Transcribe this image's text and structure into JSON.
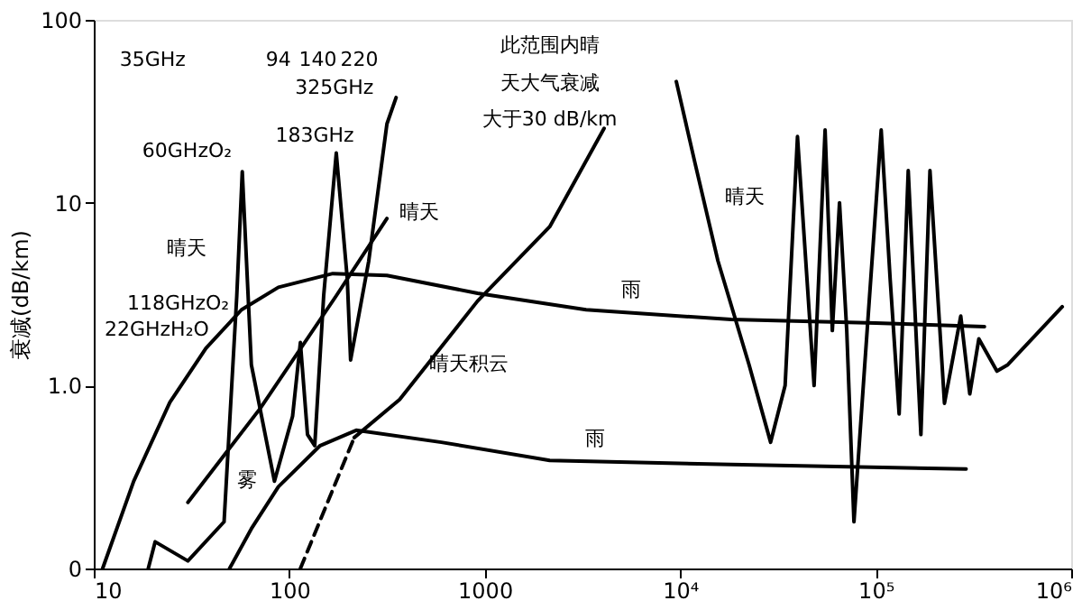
{
  "chart_data": {
    "type": "line",
    "ylabel": "衰减(dB/km)",
    "log": "xy",
    "grid": false,
    "legend": false,
    "marker": "none",
    "xlim": [
      10,
      1000000
    ],
    "ylim": [
      0.1,
      100
    ],
    "xticks": [
      10,
      100,
      1000,
      {
        "value": 10000,
        "label": "10⁴"
      },
      {
        "value": 100000,
        "label": "10⁵"
      },
      {
        "value": 1000000,
        "label": "10⁶"
      }
    ],
    "yticks": [
      {
        "value": 0.1,
        "label": "0"
      },
      {
        "value": 1,
        "label": "1.0"
      },
      10,
      100
    ],
    "series": [
      {
        "color": "#000000",
        "line_style": "solid",
        "x": [
          19,
          20.6,
          30.3,
          46.4,
          53.9,
          57.5,
          64,
          84,
          104,
          114,
          124,
          135,
          150,
          174,
          198,
          206,
          255,
          284,
          316,
          352
        ],
        "values": [
          0.1,
          0.14,
          0.11,
          0.18,
          3.1,
          14.8,
          1.3,
          0.3,
          0.68,
          1.72,
          0.54,
          0.47,
          3.1,
          18.7,
          3.85,
          1.38,
          4.8,
          11.4,
          27,
          37.6
        ]
      },
      {
        "color": "#000000",
        "line_style": "solid",
        "x": [
          9550,
          11900,
          15600,
          22500,
          29000,
          34400,
          39800,
          48400,
          55100,
          60000,
          65300,
          71100,
          77400,
          87900,
          106700,
          118600,
          131800,
          146700,
          170300,
          189500,
          224800,
          272300,
          302900,
          337000,
          417000,
          474000,
          900000
        ],
        "values": [
          46,
          16.5,
          4.8,
          1.3,
          0.49,
          1.0,
          23,
          1.0,
          25,
          2.0,
          10,
          2.0,
          0.18,
          1.3,
          25,
          3.8,
          0.7,
          15,
          0.54,
          15,
          0.8,
          2.4,
          0.9,
          1.8,
          1.2,
          1.3,
          2.7
        ]
      },
      {
        "color": "#000000",
        "line_style": "solid",
        "x": [
          11.1,
          16,
          24.5,
          37.5,
          57,
          88,
          167,
          316,
          919,
          3300,
          18200,
          100000,
          360000
        ],
        "values": [
          0.1,
          0.3,
          0.81,
          1.6,
          2.6,
          3.45,
          4.1,
          4.0,
          3.2,
          2.6,
          2.3,
          2.2,
          2.1
        ]
      },
      {
        "color": "#000000",
        "line_style": "solid",
        "x": [
          49.5,
          64,
          88,
          144,
          220,
          600,
          2150,
          18200,
          290000
        ],
        "values": [
          0.1,
          0.165,
          0.28,
          0.47,
          0.57,
          0.49,
          0.39,
          0.37,
          0.35
        ]
      },
      {
        "color": "#000000",
        "line_style": "solid",
        "x": [
          30.3,
          71,
          174,
          316
        ],
        "values": [
          0.23,
          0.75,
          3.1,
          8.2
        ]
      },
      {
        "color": "#000000",
        "line_style": "dashed",
        "x": [
          114,
          215
        ],
        "values": [
          0.1,
          0.52
        ]
      },
      {
        "color": "#000000",
        "line_style": "solid",
        "x": [
          215,
          367,
          919,
          2150,
          4080
        ],
        "values": [
          0.52,
          0.84,
          2.9,
          7.4,
          25.5
        ]
      }
    ],
    "annotations": [
      "35GHz",
      "94",
      "140",
      "220",
      "325GHz",
      "183GHz",
      "60GHzO₂",
      "118GHzO₂",
      "22GHzH₂O",
      "晴天",
      "晴天",
      "晴天",
      "雨",
      "雨",
      "雾",
      "晴天积云",
      "此范围内晴",
      "天大气衰减",
      "大于30 dB/km"
    ]
  }
}
